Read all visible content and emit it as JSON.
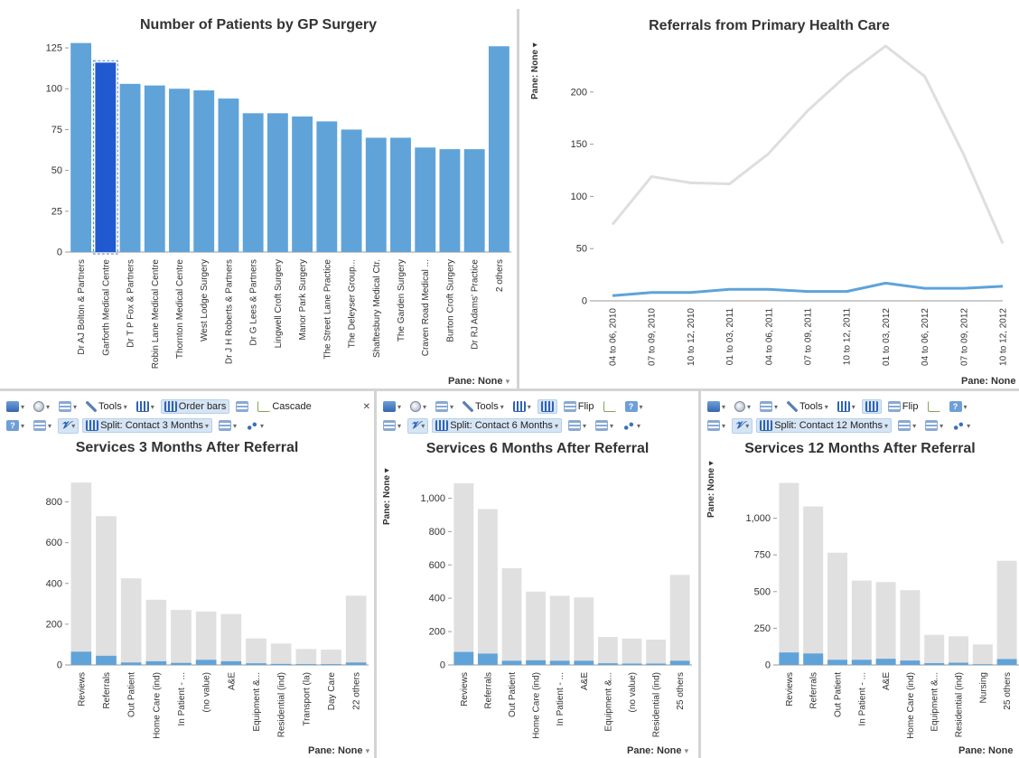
{
  "pane_label": "Pane: None",
  "top_left": {
    "chart_data": {
      "type": "bar",
      "title": "Number of Patients by GP Surgery",
      "categories": [
        "Dr AJ Bolton & Partners",
        "Garforth Medical Centre",
        "Dr T P Fox & Partners",
        "Robin Lane Medical Centre",
        "Thornton Medical Centre",
        "West Lodge Surgery",
        "Dr J H Roberts & Partners",
        "Dr G Lees & Partners",
        "Lingwell Croft Surgery",
        "Manor Park Surgery",
        "The Street Lane Practice",
        "The Deleyser Group...",
        "Shaftesbury Medical Ctr.",
        "The Garden Surgery",
        "Craven Road Medical ...",
        "Burton Croft Surgery",
        "Dr RJ Adams' Practice",
        "2 others"
      ],
      "values": [
        128,
        116,
        103,
        102,
        100,
        99,
        94,
        85,
        85,
        83,
        80,
        75,
        70,
        70,
        64,
        63,
        63,
        126
      ],
      "highlight_index": 1,
      "yticks": [
        "0",
        "25",
        "50",
        "75",
        "100",
        "125"
      ],
      "ytick_values": [
        0,
        25,
        50,
        75,
        100,
        125
      ],
      "ylim": [
        0,
        130
      ],
      "bar_color": "#5fa3d9",
      "highlight_color": "#2159d1"
    }
  },
  "top_right": {
    "chart_data": {
      "type": "line",
      "title": "Referrals from Primary Health Care",
      "categories": [
        "04 to 06, 2010",
        "07 to 09, 2010",
        "10 to 12, 2010",
        "01 to 03, 2011",
        "04 to 06, 2011",
        "07 to 09, 2011",
        "10 to 12, 2011",
        "01 to 03, 2012",
        "04 to 06, 2012",
        "07 to 09, 2012",
        "10 to 12, 2012"
      ],
      "series": [
        {
          "values": [
            73,
            119,
            113,
            112,
            141,
            182,
            216,
            244,
            215,
            140,
            55
          ],
          "color": "#dedede"
        },
        {
          "values": [
            5,
            8,
            8,
            11,
            11,
            9,
            9,
            17,
            12,
            12,
            14
          ],
          "color": "#5fa3d9"
        }
      ],
      "yticks": [
        "0",
        "50",
        "100",
        "150",
        "200"
      ],
      "ytick_values": [
        0,
        50,
        100,
        150,
        200
      ],
      "ylim": [
        0,
        250
      ]
    }
  },
  "toolbars": {
    "tools": "Tools",
    "order_bars": "Order bars",
    "cascade": "Cascade",
    "flip": "Flip",
    "split_3": "Split: Contact 3 Months",
    "split_6": "Split: Contact 6 Months",
    "split_12": "Split: Contact 12 Months",
    "v_symbol": "𝓥"
  },
  "bottom_charts": [
    {
      "chart_data": {
        "type": "bar",
        "title": "Services 3 Months After Referral",
        "categories": [
          "Reviews",
          "Referrals",
          "Out Patient",
          "Home Care (ind)",
          "In Patient - ...",
          "(no value)",
          "A&E",
          "Equipment &...",
          "Residential (ind)",
          "Transport (la)",
          "Day Care",
          "22 others"
        ],
        "series": [
          {
            "values": [
              895,
              730,
              425,
              320,
              270,
              262,
              250,
              130,
              105,
              78,
              75,
              340
            ],
            "color": "#e0e0e0"
          },
          {
            "values": [
              65,
              45,
              12,
              18,
              10,
              25,
              18,
              8,
              5,
              4,
              4,
              12
            ],
            "color": "#5fa3d9"
          }
        ],
        "yticks": [
          "0",
          "200",
          "400",
          "600",
          "800"
        ],
        "ytick_values": [
          0,
          200,
          400,
          600,
          800
        ],
        "ylim": [
          0,
          900
        ]
      }
    },
    {
      "chart_data": {
        "type": "bar",
        "title": "Services 6 Months After Referral",
        "categories": [
          "Reviews",
          "Referrals",
          "Out Patient",
          "Home Care (ind)",
          "In Patient - ...",
          "A&E",
          "Equipment &...",
          "(no value)",
          "Residential (ind)",
          "25 others"
        ],
        "series": [
          {
            "values": [
              1090,
              935,
              580,
              440,
              415,
              405,
              168,
              158,
              152,
              540
            ],
            "color": "#e0e0e0"
          },
          {
            "values": [
              78,
              68,
              25,
              28,
              25,
              25,
              10,
              8,
              8,
              25
            ],
            "color": "#5fa3d9"
          }
        ],
        "yticks": [
          "0",
          "200",
          "400",
          "600",
          "800",
          "1,000"
        ],
        "ytick_values": [
          0,
          200,
          400,
          600,
          800,
          1000
        ],
        "ylim": [
          0,
          1100
        ]
      }
    },
    {
      "chart_data": {
        "type": "bar",
        "title": "Services 12 Months After Referral",
        "categories": [
          "Reviews",
          "Referrals",
          "Out Patient",
          "In Patient - ...",
          "A&E",
          "Home Care (ind)",
          "Equipment &...",
          "Residential (ind)",
          "Nursing",
          "25 others"
        ],
        "series": [
          {
            "values": [
              1240,
              1080,
              765,
              575,
              565,
              510,
              205,
              195,
              140,
              710
            ],
            "color": "#e0e0e0"
          },
          {
            "values": [
              85,
              78,
              35,
              35,
              42,
              30,
              12,
              15,
              5,
              40
            ],
            "color": "#5fa3d9"
          }
        ],
        "yticks": [
          "0",
          "250",
          "500",
          "750",
          "1,000"
        ],
        "ytick_values": [
          0,
          250,
          500,
          750,
          1000
        ],
        "ylim": [
          0,
          1250
        ]
      }
    }
  ]
}
